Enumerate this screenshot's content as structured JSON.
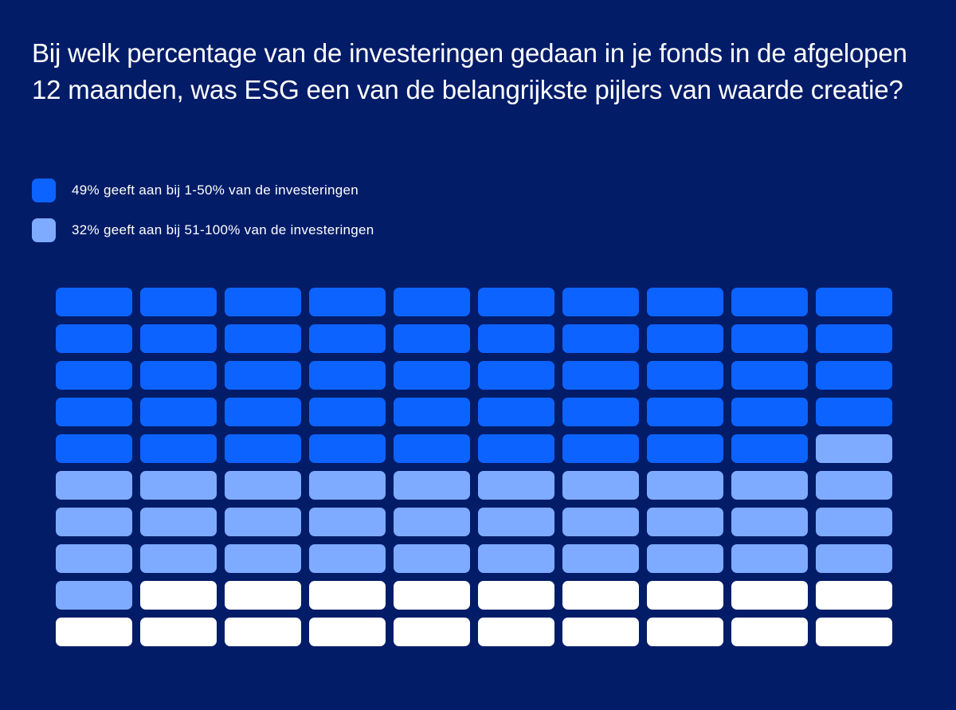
{
  "title": "Bij welk percentage van de investeringen gedaan in je fonds in de afgelopen 12 maanden, was ESG een van de belangrijkste pijlers van waarde creatie?",
  "legend": [
    {
      "label": "49% geeft aan bij 1-50% van de investeringen",
      "color": "#0d63ff"
    },
    {
      "label": "32% geeft aan bij 51-100% van de investeringen",
      "color": "#7eabff"
    }
  ],
  "chart_data": {
    "type": "waffle",
    "rows": 10,
    "columns": 10,
    "total_cells": 100,
    "series": [
      {
        "name": "49% geeft aan bij 1-50% van de investeringen",
        "value": 49,
        "color": "#0d63ff"
      },
      {
        "name": "32% geeft aan bij 51-100% van de investeringen",
        "value": 32,
        "color": "#7eabff"
      },
      {
        "value": 19,
        "color": "#ffffff"
      }
    ]
  }
}
